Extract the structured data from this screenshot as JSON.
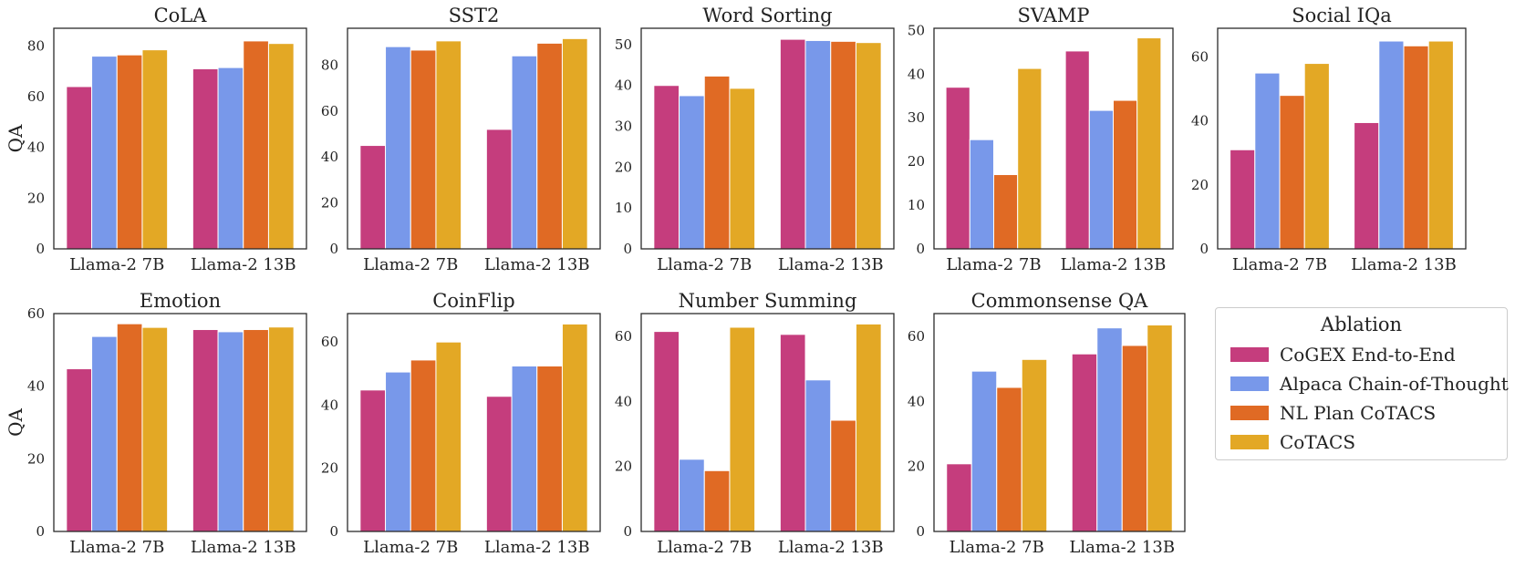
{
  "chart_data": [
    {
      "type": "bar",
      "title": "CoLA",
      "ylabel": "QA",
      "categories": [
        "Llama-2 7B",
        "Llama-2 13B"
      ],
      "ylim": [
        0,
        87
      ],
      "yticks": [
        0,
        20,
        40,
        60,
        80
      ],
      "series": [
        {
          "name": "CoGEX End-to-End",
          "values": [
            64,
            71
          ]
        },
        {
          "name": "Alpaca Chain-of-Thought",
          "values": [
            76,
            71.5
          ]
        },
        {
          "name": "NL Plan CoTACS",
          "values": [
            76.5,
            82
          ]
        },
        {
          "name": "CoTACS",
          "values": [
            78.5,
            81
          ]
        }
      ]
    },
    {
      "type": "bar",
      "title": "SST2",
      "ylabel": "",
      "categories": [
        "Llama-2 7B",
        "Llama-2 13B"
      ],
      "ylim": [
        0,
        96
      ],
      "yticks": [
        0,
        20,
        40,
        60,
        80
      ],
      "series": [
        {
          "name": "CoGEX End-to-End",
          "values": [
            45,
            52
          ]
        },
        {
          "name": "Alpaca Chain-of-Thought",
          "values": [
            88,
            84
          ]
        },
        {
          "name": "NL Plan CoTACS",
          "values": [
            86.5,
            89.5
          ]
        },
        {
          "name": "CoTACS",
          "values": [
            90.5,
            91.5
          ]
        }
      ]
    },
    {
      "type": "bar",
      "title": "Word Sorting",
      "ylabel": "",
      "categories": [
        "Llama-2 7B",
        "Llama-2 13B"
      ],
      "ylim": [
        0,
        54
      ],
      "yticks": [
        0,
        10,
        20,
        30,
        40,
        50
      ],
      "series": [
        {
          "name": "CoGEX End-to-End",
          "values": [
            40,
            51.3
          ]
        },
        {
          "name": "Alpaca Chain-of-Thought",
          "values": [
            37.5,
            51
          ]
        },
        {
          "name": "NL Plan CoTACS",
          "values": [
            42.3,
            50.8
          ]
        },
        {
          "name": "CoTACS",
          "values": [
            39.3,
            50.5
          ]
        }
      ]
    },
    {
      "type": "bar",
      "title": "SVAMP",
      "ylabel": "",
      "categories": [
        "Llama-2 7B",
        "Llama-2 13B"
      ],
      "ylim": [
        0,
        50.5
      ],
      "yticks": [
        0,
        10,
        20,
        30,
        40,
        50
      ],
      "series": [
        {
          "name": "CoGEX End-to-End",
          "values": [
            37,
            45.3
          ]
        },
        {
          "name": "Alpaca Chain-of-Thought",
          "values": [
            25,
            31.7
          ]
        },
        {
          "name": "NL Plan CoTACS",
          "values": [
            17,
            34
          ]
        },
        {
          "name": "CoTACS",
          "values": [
            41.3,
            48.3
          ]
        }
      ]
    },
    {
      "type": "bar",
      "title": "Social IQa",
      "ylabel": "",
      "categories": [
        "Llama-2 7B",
        "Llama-2 13B"
      ],
      "ylim": [
        0,
        69
      ],
      "yticks": [
        0,
        20,
        40,
        60
      ],
      "series": [
        {
          "name": "CoGEX End-to-End",
          "values": [
            31,
            39.5
          ]
        },
        {
          "name": "Alpaca Chain-of-Thought",
          "values": [
            55,
            65
          ]
        },
        {
          "name": "NL Plan CoTACS",
          "values": [
            48,
            63.5
          ]
        },
        {
          "name": "CoTACS",
          "values": [
            58,
            65
          ]
        }
      ]
    },
    {
      "type": "bar",
      "title": "Emotion",
      "ylabel": "QA",
      "categories": [
        "Llama-2 7B",
        "Llama-2 13B"
      ],
      "ylim": [
        0,
        60
      ],
      "yticks": [
        0,
        20,
        40,
        60
      ],
      "series": [
        {
          "name": "CoGEX End-to-End",
          "values": [
            44.8,
            55.6
          ]
        },
        {
          "name": "Alpaca Chain-of-Thought",
          "values": [
            53.7,
            55
          ]
        },
        {
          "name": "NL Plan CoTACS",
          "values": [
            57.2,
            55.6
          ]
        },
        {
          "name": "CoTACS",
          "values": [
            56.2,
            56.3
          ]
        }
      ]
    },
    {
      "type": "bar",
      "title": "CoinFlip",
      "ylabel": "",
      "categories": [
        "Llama-2 7B",
        "Llama-2 13B"
      ],
      "ylim": [
        0,
        69
      ],
      "yticks": [
        0,
        20,
        40,
        60
      ],
      "series": [
        {
          "name": "CoGEX End-to-End",
          "values": [
            44.8,
            42.8
          ]
        },
        {
          "name": "Alpaca Chain-of-Thought",
          "values": [
            50.5,
            52.4
          ]
        },
        {
          "name": "NL Plan CoTACS",
          "values": [
            54.3,
            52.4
          ]
        },
        {
          "name": "CoTACS",
          "values": [
            60,
            65.7
          ]
        }
      ]
    },
    {
      "type": "bar",
      "title": "Number Summing",
      "ylabel": "",
      "categories": [
        "Llama-2 7B",
        "Llama-2 13B"
      ],
      "ylim": [
        0,
        67
      ],
      "yticks": [
        0,
        20,
        40,
        60
      ],
      "series": [
        {
          "name": "CoGEX End-to-End",
          "values": [
            61.5,
            60.6
          ]
        },
        {
          "name": "Alpaca Chain-of-Thought",
          "values": [
            22.2,
            46.6
          ]
        },
        {
          "name": "NL Plan CoTACS",
          "values": [
            18.7,
            34.2
          ]
        },
        {
          "name": "CoTACS",
          "values": [
            62.8,
            63.8
          ]
        }
      ]
    },
    {
      "type": "bar",
      "title": "Commonsense QA",
      "ylabel": "",
      "categories": [
        "Llama-2 7B",
        "Llama-2 13B"
      ],
      "ylim": [
        0,
        67
      ],
      "yticks": [
        0,
        20,
        40,
        60
      ],
      "series": [
        {
          "name": "CoGEX End-to-End",
          "values": [
            20.8,
            54.6
          ]
        },
        {
          "name": "Alpaca Chain-of-Thought",
          "values": [
            49.3,
            62.6
          ]
        },
        {
          "name": "NL Plan CoTACS",
          "values": [
            44.3,
            57.2
          ]
        },
        {
          "name": "CoTACS",
          "values": [
            52.9,
            63.5
          ]
        }
      ]
    }
  ],
  "legend": {
    "title": "Ablation",
    "placement": "bottom-right",
    "items": [
      {
        "label": "CoGEX End-to-End",
        "color": "#c53d7d"
      },
      {
        "label": "Alpaca Chain-of-Thought",
        "color": "#7898ea"
      },
      {
        "label": "NL Plan CoTACS",
        "color": "#e06a24"
      },
      {
        "label": "CoTACS",
        "color": "#e3a825"
      }
    ]
  },
  "colors": {
    "series": [
      "#c53d7d",
      "#7898ea",
      "#e06a24",
      "#e3a825"
    ]
  }
}
